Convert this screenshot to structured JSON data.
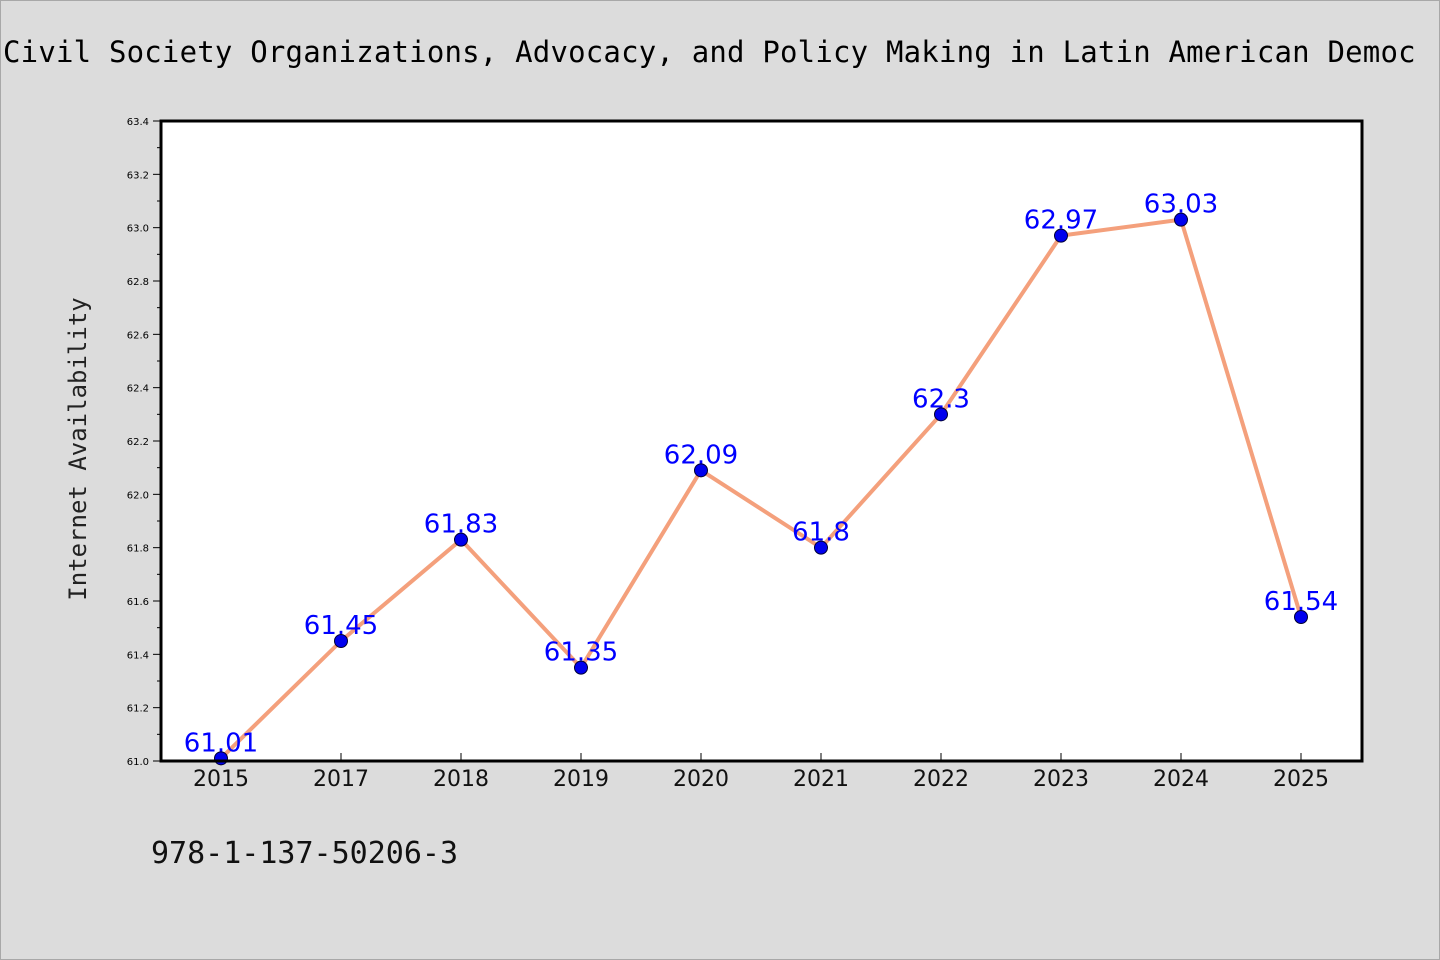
{
  "chart_data": {
    "type": "line",
    "title": "Civil Society Organizations, Advocacy, and Policy Making in Latin American Democ",
    "xlabel": "",
    "ylabel": "Internet Availability",
    "ylim": [
      61.0,
      63.4
    ],
    "yticks": [
      "61.0",
      "61.2",
      "61.4",
      "61.6",
      "61.8",
      "62.0",
      "62.2",
      "62.4",
      "62.6",
      "62.8",
      "63.0",
      "63.2",
      "63.4"
    ],
    "categories": [
      "2015",
      "2017",
      "2018",
      "2019",
      "2020",
      "2021",
      "2022",
      "2023",
      "2024",
      "2025"
    ],
    "values": [
      61.01,
      61.45,
      61.83,
      61.35,
      62.09,
      61.8,
      62.3,
      62.97,
      63.03,
      61.54
    ],
    "data_labels": [
      "61.01",
      "61.45",
      "61.83",
      "61.35",
      "62.09",
      "61.8",
      "62.3",
      "62.97",
      "63.03",
      "61.54"
    ],
    "grid": false,
    "line_color": "#f4a07c",
    "marker_color": "#0000ee",
    "label_color": "#0000ff"
  },
  "footer": {
    "isbn": "978-1-137-50206-3"
  }
}
